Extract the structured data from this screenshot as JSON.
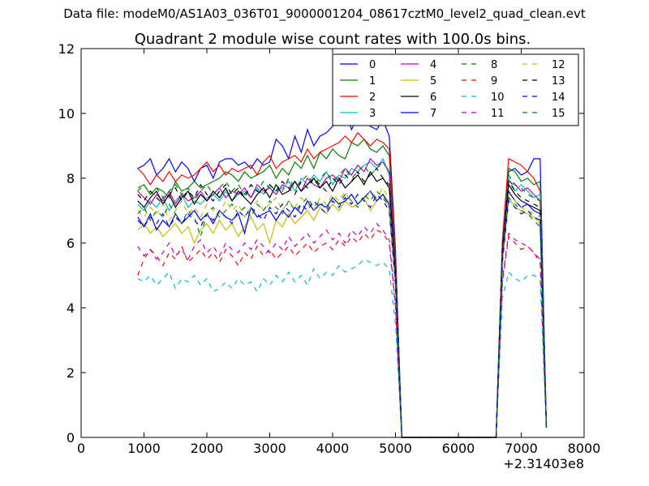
{
  "page": {
    "data_file_label": "Data file: modeM0/AS1A03_036T01_9000001204_08617cztM0_level2_quad_clean.evt"
  },
  "chart_data": {
    "type": "line",
    "title": "Quadrant 2 module wise count rates with 100.0s bins.",
    "xlabel": "",
    "ylabel": "",
    "x_offset_label": "+2.31403e8",
    "xlim": [
      0,
      8000
    ],
    "ylim": [
      0,
      12
    ],
    "x_ticks": [
      0,
      1000,
      2000,
      3000,
      4000,
      5000,
      6000,
      7000,
      8000
    ],
    "y_ticks": [
      0,
      2,
      4,
      6,
      8,
      10,
      12
    ],
    "grid": false,
    "legend_placement": "top-right",
    "legend_columns": 4,
    "x": [
      900,
      1000,
      1100,
      1200,
      1300,
      1400,
      1500,
      1600,
      1700,
      1800,
      1900,
      2000,
      2100,
      2200,
      2300,
      2400,
      2500,
      2600,
      2700,
      2800,
      2900,
      3000,
      3100,
      3200,
      3300,
      3400,
      3500,
      3600,
      3700,
      3800,
      3900,
      4000,
      4100,
      4200,
      4300,
      4400,
      4500,
      4600,
      4700,
      4800,
      4900,
      5000,
      5100,
      5200,
      5300,
      5400,
      5500,
      5600,
      5700,
      5800,
      5900,
      6000,
      6100,
      6200,
      6300,
      6400,
      6500,
      6600,
      6700,
      6800,
      6900,
      7000,
      7100,
      7200,
      7300,
      7400
    ],
    "series": [
      {
        "name": "0",
        "color": "#0000ff",
        "dash": "solid",
        "values": [
          8.3,
          8.4,
          8.6,
          8.1,
          8.3,
          8.6,
          8.2,
          8.5,
          8.3,
          7.9,
          8.3,
          8.4,
          8.0,
          8.5,
          8.6,
          8.6,
          8.4,
          8.5,
          8.3,
          8.6,
          8.4,
          8.5,
          9.2,
          9.0,
          8.6,
          9.3,
          8.8,
          9.5,
          9.0,
          9.3,
          9.4,
          9.6,
          9.8,
          10.1,
          9.5,
          9.9,
          9.8,
          9.6,
          9.5,
          9.8,
          9.3,
          5.8,
          0.0,
          0.0,
          0.0,
          0.0,
          0.0,
          0.0,
          0.0,
          0.0,
          0.0,
          0.0,
          0.0,
          0.0,
          0.0,
          0.0,
          0.0,
          0.0,
          6.0,
          8.2,
          8.3,
          8.1,
          8.2,
          8.6,
          8.6,
          0.3
        ]
      },
      {
        "name": "1",
        "color": "#008000",
        "dash": "solid",
        "values": [
          7.7,
          7.8,
          7.5,
          7.7,
          7.6,
          7.4,
          7.9,
          7.6,
          7.7,
          7.9,
          7.7,
          7.8,
          7.9,
          8.0,
          8.2,
          8.1,
          7.9,
          8.2,
          8.0,
          8.1,
          8.2,
          8.4,
          8.0,
          8.3,
          8.1,
          8.5,
          8.3,
          8.7,
          8.3,
          8.8,
          8.6,
          8.9,
          8.7,
          8.6,
          9.1,
          9.0,
          9.2,
          8.9,
          8.8,
          9.0,
          8.7,
          5.5,
          0.0,
          0.0,
          0.0,
          0.0,
          0.0,
          0.0,
          0.0,
          0.0,
          0.0,
          0.0,
          0.0,
          0.0,
          0.0,
          0.0,
          0.0,
          0.0,
          6.0,
          8.3,
          8.2,
          7.9,
          8.0,
          7.8,
          7.9,
          0.3
        ]
      },
      {
        "name": "2",
        "color": "#ff0000",
        "dash": "solid",
        "values": [
          8.3,
          8.1,
          7.8,
          8.1,
          7.9,
          8.2,
          7.9,
          8.1,
          8.0,
          8.1,
          8.3,
          8.5,
          8.2,
          8.4,
          8.1,
          8.3,
          8.2,
          8.3,
          8.4,
          8.1,
          8.5,
          8.7,
          8.3,
          8.5,
          8.6,
          8.7,
          8.5,
          8.9,
          8.6,
          8.8,
          8.9,
          9.0,
          9.1,
          9.3,
          9.1,
          9.4,
          9.2,
          9.0,
          9.2,
          9.1,
          8.9,
          5.6,
          0.0,
          0.0,
          0.0,
          0.0,
          0.0,
          0.0,
          0.0,
          0.0,
          0.0,
          0.0,
          0.0,
          0.0,
          0.0,
          0.0,
          0.0,
          0.0,
          6.1,
          8.6,
          8.5,
          8.4,
          8.2,
          8.0,
          7.6,
          0.3
        ]
      },
      {
        "name": "3",
        "color": "#00bfbf",
        "dash": "solid",
        "values": [
          7.2,
          7.0,
          7.3,
          7.1,
          7.4,
          7.0,
          7.3,
          7.5,
          7.1,
          7.3,
          7.2,
          7.4,
          7.5,
          7.3,
          7.6,
          7.3,
          7.5,
          7.6,
          7.4,
          7.7,
          7.5,
          7.8,
          7.6,
          7.7,
          7.9,
          7.6,
          8.0,
          7.8,
          8.1,
          7.9,
          8.2,
          7.8,
          8.1,
          8.0,
          8.3,
          8.2,
          8.4,
          8.5,
          8.3,
          8.6,
          8.1,
          5.2,
          0.0,
          0.0,
          0.0,
          0.0,
          0.0,
          0.0,
          0.0,
          0.0,
          0.0,
          0.0,
          0.0,
          0.0,
          0.0,
          0.0,
          0.0,
          0.0,
          5.8,
          8.0,
          7.6,
          7.8,
          7.6,
          7.4,
          7.5,
          0.3
        ]
      },
      {
        "name": "4",
        "color": "#bf00bf",
        "dash": "solid",
        "values": [
          7.6,
          7.4,
          7.2,
          7.5,
          7.3,
          7.6,
          7.2,
          7.5,
          7.3,
          7.4,
          7.6,
          7.3,
          7.5,
          7.7,
          7.4,
          7.6,
          7.5,
          7.7,
          7.4,
          7.8,
          7.6,
          7.7,
          7.5,
          7.8,
          7.7,
          7.9,
          7.6,
          8.0,
          7.8,
          7.7,
          8.0,
          8.1,
          7.9,
          8.3,
          8.1,
          8.4,
          8.2,
          8.6,
          8.4,
          8.5,
          8.2,
          5.3,
          0.0,
          0.0,
          0.0,
          0.0,
          0.0,
          0.0,
          0.0,
          0.0,
          0.0,
          0.0,
          0.0,
          0.0,
          0.0,
          0.0,
          0.0,
          0.0,
          5.9,
          7.9,
          7.8,
          7.6,
          7.7,
          7.5,
          7.3,
          0.3
        ]
      },
      {
        "name": "5",
        "color": "#bfbf00",
        "dash": "solid",
        "values": [
          6.4,
          6.6,
          6.3,
          6.5,
          6.2,
          6.4,
          6.6,
          6.3,
          6.5,
          6.0,
          6.4,
          6.6,
          6.3,
          6.7,
          6.4,
          6.6,
          6.2,
          6.5,
          6.8,
          6.4,
          6.6,
          6.0,
          6.7,
          6.5,
          6.9,
          6.6,
          6.8,
          7.0,
          6.7,
          7.1,
          6.9,
          7.2,
          7.0,
          7.3,
          7.1,
          7.2,
          7.4,
          7.0,
          7.3,
          7.5,
          7.1,
          4.8,
          0.0,
          0.0,
          0.0,
          0.0,
          0.0,
          0.0,
          0.0,
          0.0,
          0.0,
          0.0,
          0.0,
          0.0,
          0.0,
          0.0,
          0.0,
          0.0,
          5.5,
          7.4,
          7.1,
          7.0,
          6.9,
          6.8,
          6.6,
          0.3
        ]
      },
      {
        "name": "6",
        "color": "#000000",
        "dash": "solid",
        "values": [
          7.3,
          7.1,
          7.4,
          7.6,
          7.2,
          7.5,
          7.1,
          7.4,
          7.6,
          7.2,
          7.5,
          7.3,
          7.6,
          7.4,
          7.7,
          7.3,
          7.6,
          7.4,
          7.2,
          7.5,
          7.7,
          7.4,
          7.8,
          7.5,
          7.6,
          7.9,
          7.6,
          7.8,
          8.0,
          7.7,
          7.9,
          7.6,
          8.0,
          7.7,
          7.9,
          8.1,
          7.8,
          8.2,
          7.9,
          8.0,
          7.7,
          5.0,
          0.0,
          0.0,
          0.0,
          0.0,
          0.0,
          0.0,
          0.0,
          0.0,
          0.0,
          0.0,
          0.0,
          0.0,
          0.0,
          0.0,
          0.0,
          0.0,
          5.7,
          7.8,
          7.5,
          7.3,
          7.2,
          7.1,
          7.0,
          0.3
        ]
      },
      {
        "name": "7",
        "color": "#0000ff",
        "dash": "solid",
        "values": [
          6.8,
          6.5,
          6.9,
          6.4,
          6.7,
          6.5,
          6.9,
          6.6,
          6.8,
          7.0,
          6.7,
          6.9,
          6.6,
          7.0,
          6.8,
          6.7,
          6.9,
          6.3,
          7.1,
          6.8,
          6.9,
          7.0,
          6.7,
          7.0,
          6.8,
          7.1,
          6.9,
          7.3,
          7.0,
          7.2,
          7.1,
          7.4,
          7.2,
          7.3,
          7.5,
          7.2,
          7.4,
          7.6,
          7.3,
          7.5,
          7.2,
          4.8,
          0.0,
          0.0,
          0.0,
          0.0,
          0.0,
          0.0,
          0.0,
          0.0,
          0.0,
          0.0,
          0.0,
          0.0,
          0.0,
          0.0,
          0.0,
          0.0,
          5.6,
          7.6,
          7.3,
          7.1,
          7.2,
          7.0,
          6.9,
          0.3
        ]
      },
      {
        "name": "8",
        "color": "#008000",
        "dash": "dashed",
        "values": [
          7.6,
          7.8,
          7.5,
          7.7,
          7.4,
          7.6,
          7.8,
          7.5,
          7.7,
          7.3,
          7.6,
          7.8,
          7.5,
          7.7,
          7.9,
          7.6,
          7.8,
          7.5,
          7.8,
          7.6,
          7.9,
          7.7,
          7.8,
          7.6,
          8.0,
          7.7,
          7.9,
          8.1,
          7.8,
          8.0,
          8.2,
          7.9,
          8.1,
          8.3,
          8.0,
          8.2,
          8.4,
          8.1,
          8.3,
          8.5,
          8.2,
          5.4,
          0.0,
          0.0,
          0.0,
          0.0,
          0.0,
          0.0,
          0.0,
          0.0,
          0.0,
          0.0,
          0.0,
          0.0,
          0.0,
          0.0,
          0.0,
          0.0,
          5.9,
          8.1,
          7.8,
          7.7,
          7.5,
          7.4,
          7.3,
          0.3
        ]
      },
      {
        "name": "9",
        "color": "#ff0000",
        "dash": "dashed",
        "values": [
          5.0,
          5.5,
          5.8,
          5.6,
          5.3,
          5.7,
          5.5,
          5.9,
          5.4,
          5.6,
          5.8,
          5.5,
          5.7,
          5.4,
          5.8,
          5.6,
          5.3,
          5.7,
          5.5,
          5.9,
          5.6,
          5.8,
          5.5,
          5.7,
          5.9,
          5.6,
          5.8,
          6.0,
          5.7,
          5.9,
          6.0,
          5.8,
          6.1,
          5.9,
          6.2,
          6.0,
          6.3,
          6.1,
          6.4,
          6.3,
          6.0,
          4.0,
          0.0,
          0.0,
          0.0,
          0.0,
          0.0,
          0.0,
          0.0,
          0.0,
          0.0,
          0.0,
          0.0,
          0.0,
          0.0,
          0.0,
          0.0,
          0.0,
          4.8,
          6.2,
          6.0,
          5.8,
          5.9,
          5.7,
          5.4,
          0.3
        ]
      },
      {
        "name": "10",
        "color": "#00bfbf",
        "dash": "dashed",
        "values": [
          4.9,
          4.8,
          5.0,
          4.7,
          4.9,
          5.1,
          4.6,
          4.9,
          4.8,
          5.0,
          4.7,
          4.9,
          4.5,
          4.6,
          4.8,
          4.6,
          4.9,
          4.7,
          4.8,
          4.5,
          4.9,
          4.7,
          5.0,
          4.8,
          5.1,
          4.8,
          5.0,
          4.7,
          5.2,
          4.9,
          5.1,
          5.0,
          5.3,
          5.1,
          5.2,
          5.3,
          5.5,
          5.4,
          5.3,
          5.4,
          5.2,
          3.5,
          0.0,
          0.0,
          0.0,
          0.0,
          0.0,
          0.0,
          0.0,
          0.0,
          0.0,
          0.0,
          0.0,
          0.0,
          0.0,
          0.0,
          0.0,
          0.0,
          4.3,
          5.1,
          4.9,
          4.8,
          5.0,
          5.0,
          4.9,
          0.3
        ]
      },
      {
        "name": "11",
        "color": "#bf00bf",
        "dash": "dashed",
        "values": [
          5.9,
          5.6,
          5.8,
          5.5,
          5.7,
          6.0,
          5.6,
          5.8,
          5.5,
          5.9,
          6.1,
          5.7,
          5.9,
          5.6,
          6.0,
          5.8,
          5.7,
          6.0,
          5.8,
          6.1,
          5.9,
          5.7,
          6.0,
          5.8,
          6.2,
          5.9,
          6.1,
          6.3,
          6.0,
          6.2,
          6.4,
          6.1,
          6.3,
          6.0,
          6.4,
          6.2,
          6.5,
          6.3,
          6.6,
          6.4,
          6.1,
          4.1,
          0.0,
          0.0,
          0.0,
          0.0,
          0.0,
          0.0,
          0.0,
          0.0,
          0.0,
          0.0,
          0.0,
          0.0,
          0.0,
          0.0,
          0.0,
          0.0,
          4.9,
          6.3,
          6.1,
          6.0,
          5.9,
          5.7,
          5.5,
          0.3
        ]
      },
      {
        "name": "12",
        "color": "#bfbf00",
        "dash": "dashed",
        "values": [
          7.0,
          6.8,
          7.1,
          6.9,
          7.2,
          6.7,
          7.0,
          7.3,
          6.9,
          7.1,
          6.8,
          7.2,
          7.0,
          6.9,
          7.3,
          7.0,
          7.2,
          6.8,
          7.1,
          7.3,
          7.0,
          7.2,
          7.4,
          7.0,
          7.3,
          7.1,
          7.4,
          7.2,
          7.0,
          7.4,
          7.2,
          7.5,
          7.3,
          7.6,
          7.2,
          7.5,
          7.3,
          7.6,
          7.4,
          7.7,
          7.3,
          4.9,
          0.0,
          0.0,
          0.0,
          0.0,
          0.0,
          0.0,
          0.0,
          0.0,
          0.0,
          0.0,
          0.0,
          0.0,
          0.0,
          0.0,
          0.0,
          0.0,
          5.6,
          7.5,
          7.3,
          7.1,
          7.0,
          6.9,
          6.8,
          0.3
        ]
      },
      {
        "name": "13",
        "color": "#000000",
        "dash": "dashed",
        "values": [
          7.5,
          7.3,
          7.6,
          7.4,
          7.2,
          7.5,
          7.7,
          7.3,
          7.6,
          7.4,
          7.8,
          7.5,
          7.3,
          7.6,
          7.8,
          7.5,
          7.7,
          7.4,
          7.8,
          7.6,
          7.5,
          7.8,
          7.6,
          7.9,
          7.7,
          7.5,
          7.9,
          7.7,
          8.0,
          7.8,
          7.6,
          8.0,
          7.8,
          8.1,
          7.9,
          8.2,
          7.9,
          8.1,
          8.3,
          8.0,
          7.8,
          5.2,
          0.0,
          0.0,
          0.0,
          0.0,
          0.0,
          0.0,
          0.0,
          0.0,
          0.0,
          0.0,
          0.0,
          0.0,
          0.0,
          0.0,
          0.0,
          0.0,
          5.8,
          7.9,
          7.6,
          7.4,
          7.3,
          7.2,
          7.1,
          0.3
        ]
      },
      {
        "name": "14",
        "color": "#0000ff",
        "dash": "dashed",
        "values": [
          6.7,
          6.5,
          6.8,
          6.6,
          6.9,
          6.5,
          6.8,
          6.6,
          6.9,
          6.7,
          6.5,
          6.9,
          6.7,
          7.0,
          6.8,
          6.6,
          7.0,
          6.8,
          7.1,
          6.9,
          6.7,
          7.1,
          6.9,
          7.2,
          7.0,
          6.8,
          7.2,
          7.0,
          7.3,
          7.1,
          6.9,
          7.3,
          7.1,
          7.4,
          7.2,
          7.5,
          7.3,
          7.1,
          7.5,
          7.3,
          7.0,
          4.7,
          0.0,
          0.0,
          0.0,
          0.0,
          0.0,
          0.0,
          0.0,
          0.0,
          0.0,
          0.0,
          0.0,
          0.0,
          0.0,
          0.0,
          0.0,
          0.0,
          5.4,
          7.3,
          7.1,
          6.9,
          7.0,
          6.8,
          6.7,
          0.3
        ]
      },
      {
        "name": "15",
        "color": "#008000",
        "dash": "dashed",
        "values": [
          6.9,
          7.1,
          6.7,
          7.0,
          6.8,
          7.2,
          6.9,
          6.6,
          7.0,
          6.8,
          6.2,
          6.9,
          7.1,
          6.8,
          7.0,
          7.2,
          6.9,
          7.1,
          6.8,
          7.2,
          7.0,
          7.3,
          7.1,
          6.9,
          7.3,
          7.0,
          7.2,
          7.4,
          7.1,
          7.3,
          7.0,
          7.4,
          7.2,
          7.5,
          7.3,
          7.1,
          7.5,
          7.3,
          7.6,
          7.4,
          7.1,
          4.8,
          0.0,
          0.0,
          0.0,
          0.0,
          0.0,
          0.0,
          0.0,
          0.0,
          0.0,
          0.0,
          0.0,
          0.0,
          0.0,
          0.0,
          0.0,
          0.0,
          5.5,
          7.4,
          7.2,
          7.0,
          6.9,
          6.7,
          6.5,
          0.3
        ]
      }
    ]
  }
}
